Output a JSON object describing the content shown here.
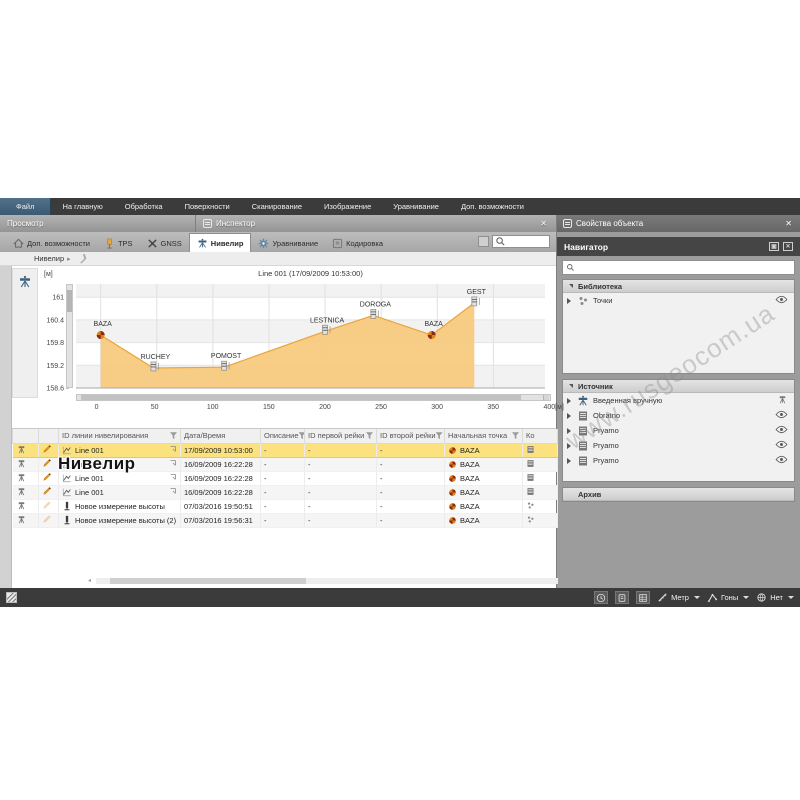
{
  "menu": {
    "items": [
      "Файл",
      "На главную",
      "Обработка",
      "Поверхности",
      "Сканирование",
      "Изображение",
      "Уравнивание",
      "Доп. возможности"
    ],
    "active_index": 0
  },
  "panels": {
    "left_title": "Просмотр",
    "inspector_title": "Инспектор",
    "close_glyph": "✕"
  },
  "tabs": {
    "items": [
      {
        "label": "Доп. возможности",
        "icon": "home-icon",
        "active": false
      },
      {
        "label": "TPS",
        "icon": "tps-icon",
        "active": false
      },
      {
        "label": "GNSS",
        "icon": "gnss-icon",
        "active": false
      },
      {
        "label": "Нивелир",
        "icon": "level-icon",
        "active": true
      },
      {
        "label": "Уравнивание",
        "icon": "gear-icon",
        "active": false
      },
      {
        "label": "Кодировка",
        "icon": "code-icon",
        "active": false
      }
    ],
    "search_placeholder": ""
  },
  "breadcrumb": {
    "item": "Нивелир",
    "sep": "▸"
  },
  "chart_data": {
    "type": "area",
    "title": "Line 001 (17/09/2009 10:53:00)",
    "y_unit": "[м]",
    "x_unit_suffix": "[м]",
    "points": [
      {
        "x": 0,
        "y": 160.0,
        "label": "BAZA",
        "marker": "base"
      },
      {
        "x": 47,
        "y": 159.13,
        "label": "RUCHEY",
        "marker": "staff"
      },
      {
        "x": 110,
        "y": 159.15,
        "label": "POMOST",
        "marker": "staff"
      },
      {
        "x": 200,
        "y": 160.1,
        "label": "LESTNICA",
        "marker": "staff"
      },
      {
        "x": 243,
        "y": 160.52,
        "label": "DOROGA",
        "marker": "staff"
      },
      {
        "x": 295,
        "y": 160.0,
        "label": "BAZA",
        "marker": "base"
      },
      {
        "x": 333,
        "y": 160.85,
        "label": "GEST",
        "marker": "staff"
      }
    ],
    "xticks": [
      0,
      50,
      100,
      150,
      200,
      250,
      300,
      350,
      400
    ],
    "yticks": [
      161,
      160.4,
      159.8,
      159.2,
      158.6
    ],
    "xlim": [
      -22,
      396
    ],
    "ylim": [
      158.6,
      161.35
    ],
    "grid": true,
    "legend": "none",
    "fill_color": "#f7ca7d",
    "line_color": "#eaa53c"
  },
  "table": {
    "headers": [
      {
        "label": "",
        "filter": false
      },
      {
        "label": "",
        "filter": false
      },
      {
        "label": "ID линии нивелирования",
        "filter": true
      },
      {
        "label": "Дата/Время",
        "filter": false
      },
      {
        "label": "Описание",
        "filter": true
      },
      {
        "label": "ID первой рейки",
        "filter": true
      },
      {
        "label": "ID второй рейки",
        "filter": true
      },
      {
        "label": "Начальная точка",
        "filter": true
      },
      {
        "label": "Ко",
        "filter": false
      }
    ],
    "rows": [
      {
        "type": "line",
        "name": "Line 001",
        "datetime": "17/09/2009 10:53:00",
        "desc": "-",
        "rod1": "-",
        "rod2": "-",
        "start": "BAZA",
        "selected": true
      },
      {
        "type": "line",
        "name": "Line 001",
        "datetime": "16/09/2009 16:22:28",
        "desc": "-",
        "rod1": "-",
        "rod2": "-",
        "start": "BAZA",
        "selected": false
      },
      {
        "type": "line",
        "name": "Line 001",
        "datetime": "16/09/2009 16:22:28",
        "desc": "-",
        "rod1": "-",
        "rod2": "-",
        "start": "BAZA",
        "selected": false
      },
      {
        "type": "line",
        "name": "Line 001",
        "datetime": "16/09/2009 16:22:28",
        "desc": "-",
        "rod1": "-",
        "rod2": "-",
        "start": "BAZA",
        "selected": false
      },
      {
        "type": "height",
        "name": "Новое измерение высоты",
        "datetime": "07/03/2016 19:50:51",
        "desc": "-",
        "rod1": "-",
        "rod2": "-",
        "start": "BAZA",
        "selected": false
      },
      {
        "type": "height",
        "name": "Новое измерение высоты (2)",
        "datetime": "07/03/2016 19:56:31",
        "desc": "-",
        "rod1": "-",
        "rod2": "-",
        "start": "BAZA",
        "selected": false
      }
    ]
  },
  "caption": "Нивелир",
  "right_panel": {
    "properties_title": "Свойства объекта",
    "navigator_title": "Навигатор",
    "search_placeholder": "",
    "section_library": "Библиотека",
    "section_source": "Источник",
    "section_archive": "Архив",
    "library_items": [
      {
        "label": "Точки",
        "icon": "points-icon",
        "right_icon": "eye-icon"
      }
    ],
    "source_items": [
      {
        "label": "Введенная вручную",
        "icon": "level-icon",
        "right_icon": "level-small-icon"
      },
      {
        "label": "Obratno",
        "icon": "doc-icon",
        "right_icon": "eye-icon"
      },
      {
        "label": "Pryamo",
        "icon": "doc-icon",
        "right_icon": "eye-icon"
      },
      {
        "label": "Pryamo",
        "icon": "doc-icon",
        "right_icon": "eye-icon"
      },
      {
        "label": "Pryamo",
        "icon": "doc-icon",
        "right_icon": "eye-icon"
      }
    ]
  },
  "status_bar": {
    "buttons": [
      "clock-icon",
      "inspector-icon",
      "grid-icon"
    ],
    "dropdowns": [
      {
        "icon": "ruler-icon",
        "label": "Метр"
      },
      {
        "icon": "angle-icon",
        "label": "Гоны"
      },
      {
        "icon": "geoid-icon",
        "label": "Нет"
      }
    ]
  },
  "watermark": "www.rusgeocom.ua",
  "colors": {
    "accent_selection": "#fbe27f",
    "area_fill": "#f7ca7d",
    "area_line": "#eaa53c",
    "base_marker_dark": "#8a2a1a",
    "base_marker_orange": "#e08214",
    "menu_active": "#3c5a70"
  }
}
